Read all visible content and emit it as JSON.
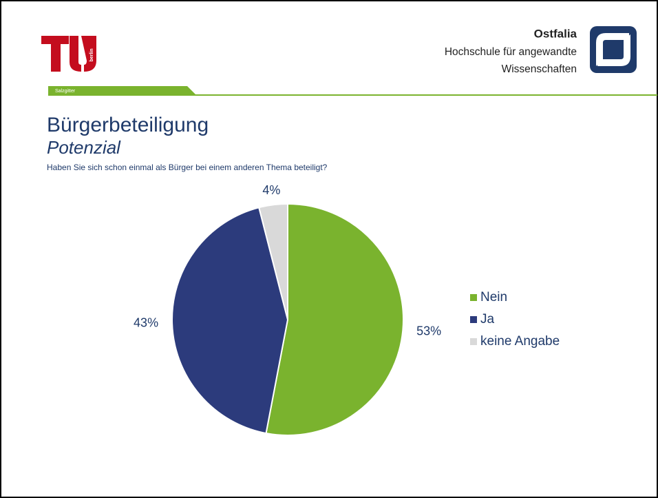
{
  "header": {
    "tu_logo_text": "berlin",
    "tab": "Salzgitter",
    "ostfalia": "Ostfalia",
    "ostfalia_line1": "Hochschule für angewandte",
    "ostfalia_line2": "Wissenschaften"
  },
  "chart_data": {
    "type": "pie",
    "title": "Bürgerbeteiligung",
    "subtitle": "Potenzial",
    "question": "Haben Sie sich schon einmal als Bürger bei einem anderen Thema beteiligt?",
    "categories": [
      "Nein",
      "Ja",
      "keine Angabe"
    ],
    "values": [
      53,
      43,
      4
    ],
    "value_labels": [
      "53%",
      "43%",
      "4%"
    ],
    "colors": [
      "#7ab32e",
      "#2c3b7c",
      "#d9d9d9"
    ],
    "legend": "right"
  }
}
